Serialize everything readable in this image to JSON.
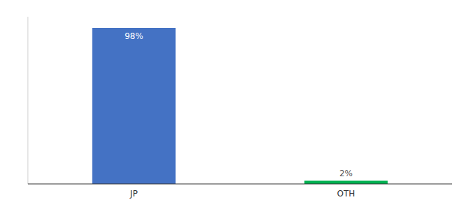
{
  "chart_data": {
    "type": "bar",
    "categories": [
      "JP",
      "OTH"
    ],
    "values": [
      98,
      2
    ],
    "value_labels": [
      "98%",
      "2%"
    ],
    "data_labels": true,
    "colors": [
      "#4472c4",
      "#00b050"
    ],
    "ylim": [
      0,
      105
    ],
    "tick_labels": "x"
  }
}
